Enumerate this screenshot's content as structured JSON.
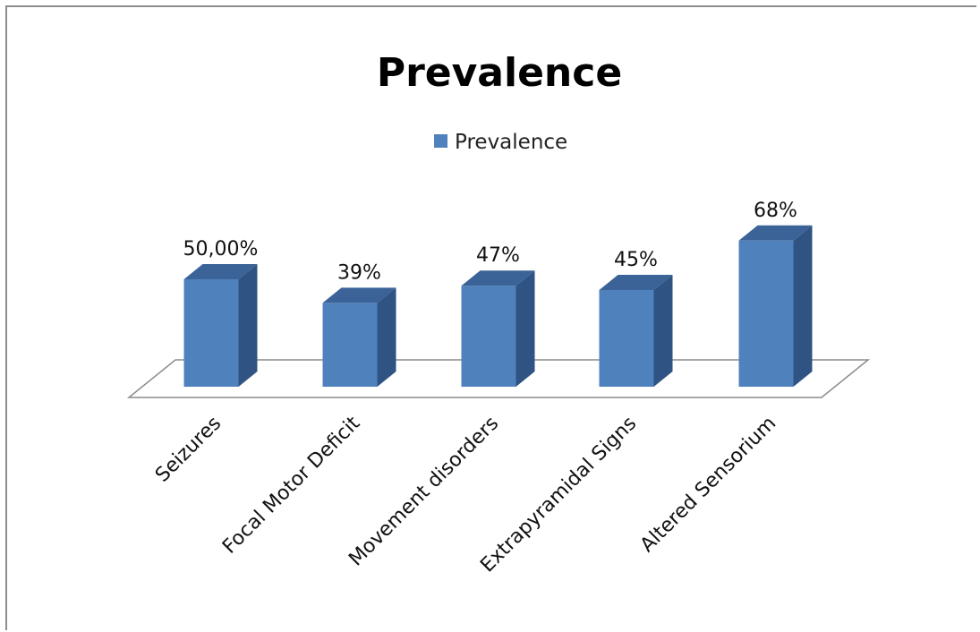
{
  "chart_data": {
    "type": "bar",
    "title": "Prevalence",
    "categories": [
      "Seizures",
      "Focal Motor Deficit",
      "Movement disorders",
      "Extrapyramidal Signs",
      "Altered Sensorium"
    ],
    "series": [
      {
        "name": "Prevalence",
        "values": [
          0.5,
          0.39,
          0.47,
          0.45,
          0.68
        ],
        "labels": [
          "50,00%",
          "39%",
          "47%",
          "45%",
          "68%"
        ]
      }
    ],
    "xlabel": "",
    "ylabel": "",
    "ylim": [
      0,
      1
    ],
    "grid": false,
    "legend_position": "top",
    "colors": {
      "bar_front": "#4f81bd",
      "bar_side": "#2f5382",
      "bar_top": "#3b6397",
      "floor_stroke": "#8c8c8c"
    }
  }
}
